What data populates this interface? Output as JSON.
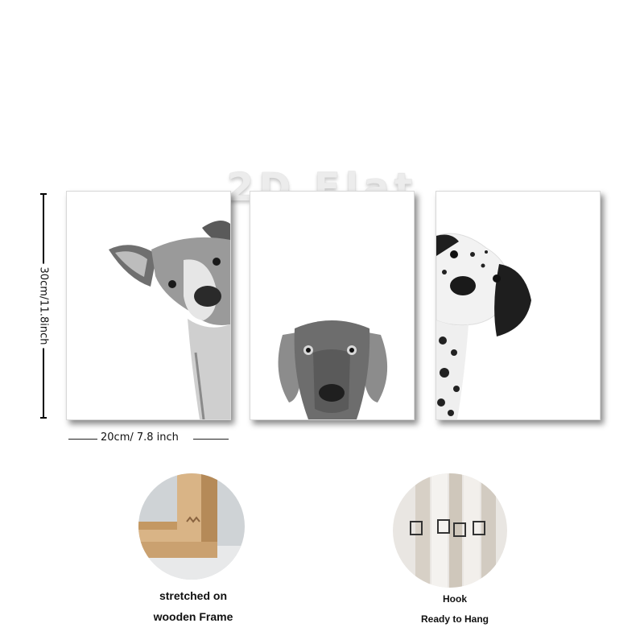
{
  "watermark": "2D Flat",
  "dimensions": {
    "height_label": "30cm/11.8inch",
    "width_label": "20cm/ 7.8 inch"
  },
  "panels": [
    {
      "subject": "dog-peeking-left"
    },
    {
      "subject": "weimaraner-dog"
    },
    {
      "subject": "dalmatian-dog"
    }
  ],
  "details": {
    "frame": {
      "line1": "stretched on",
      "line2": "wooden Frame"
    },
    "hook": {
      "line1": "Hook",
      "line2": "Ready to Hang"
    }
  }
}
